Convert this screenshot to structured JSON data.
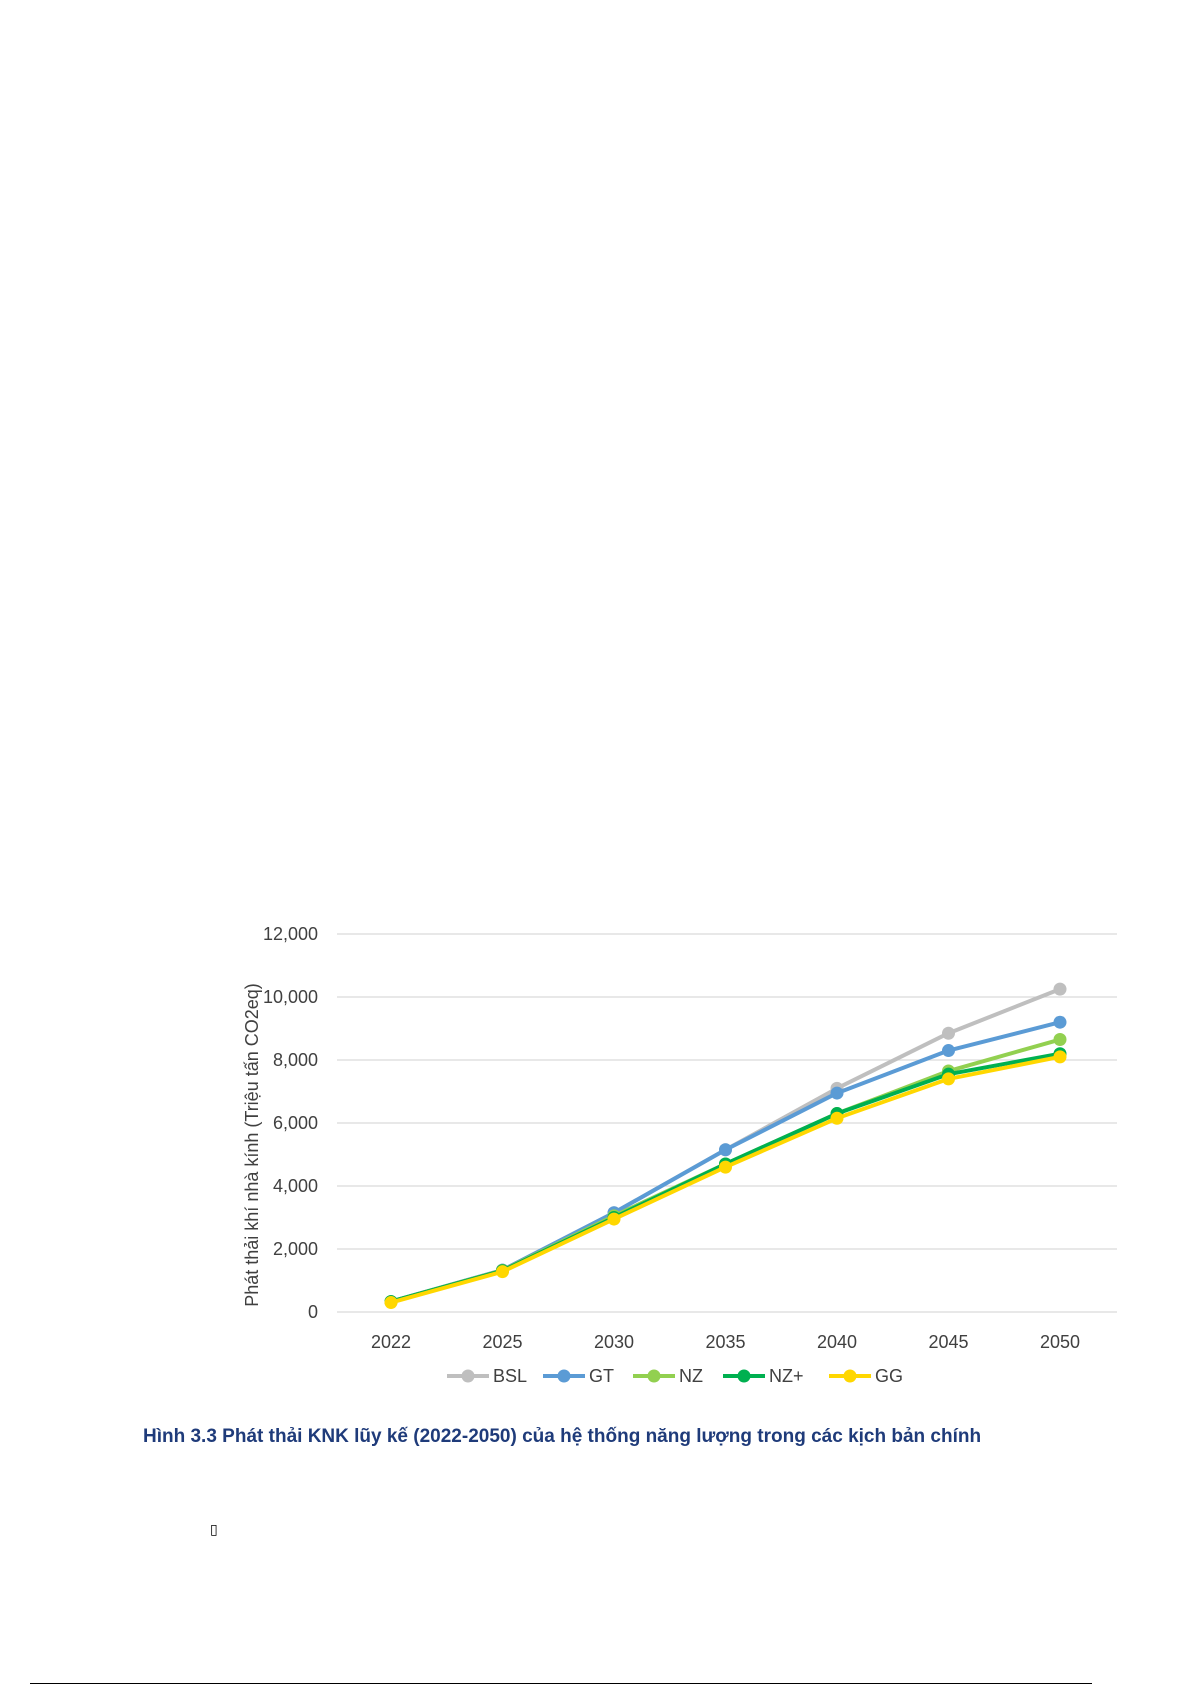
{
  "caption": "Hình 3.3 Phát thải KNK lũy kế (2022-2050) của hệ thống năng lượng trong các kịch bản chính",
  "stray_glyph": "▯",
  "chart_data": {
    "type": "line",
    "title": "",
    "xlabel": "",
    "ylabel": "Phát thải khí nhà kính (Triệu tấn CO2eq)",
    "categories": [
      "2022",
      "2025",
      "2030",
      "2035",
      "2040",
      "2045",
      "2050"
    ],
    "ylim": [
      0,
      12000
    ],
    "yticks": [
      0,
      2000,
      4000,
      6000,
      8000,
      10000,
      12000
    ],
    "ytick_labels": [
      "0",
      "2,000",
      "4,000",
      "6,000",
      "8,000",
      "10,000",
      "12,000"
    ],
    "grid": true,
    "legend_position": "bottom",
    "series": [
      {
        "name": "BSL",
        "color": "#bfbfbf",
        "values": [
          330,
          1330,
          3150,
          5150,
          7100,
          8850,
          10250
        ]
      },
      {
        "name": "GT",
        "color": "#5b9bd5",
        "values": [
          330,
          1330,
          3150,
          5150,
          6950,
          8300,
          9200
        ]
      },
      {
        "name": "NZ",
        "color": "#92d050",
        "values": [
          330,
          1320,
          3050,
          4700,
          6300,
          7650,
          8650
        ]
      },
      {
        "name": "NZ+",
        "color": "#00b050",
        "values": [
          330,
          1310,
          3000,
          4700,
          6300,
          7550,
          8200
        ]
      },
      {
        "name": "GG",
        "color": "#ffd700",
        "values": [
          300,
          1280,
          2950,
          4600,
          6150,
          7400,
          8100
        ]
      }
    ]
  }
}
